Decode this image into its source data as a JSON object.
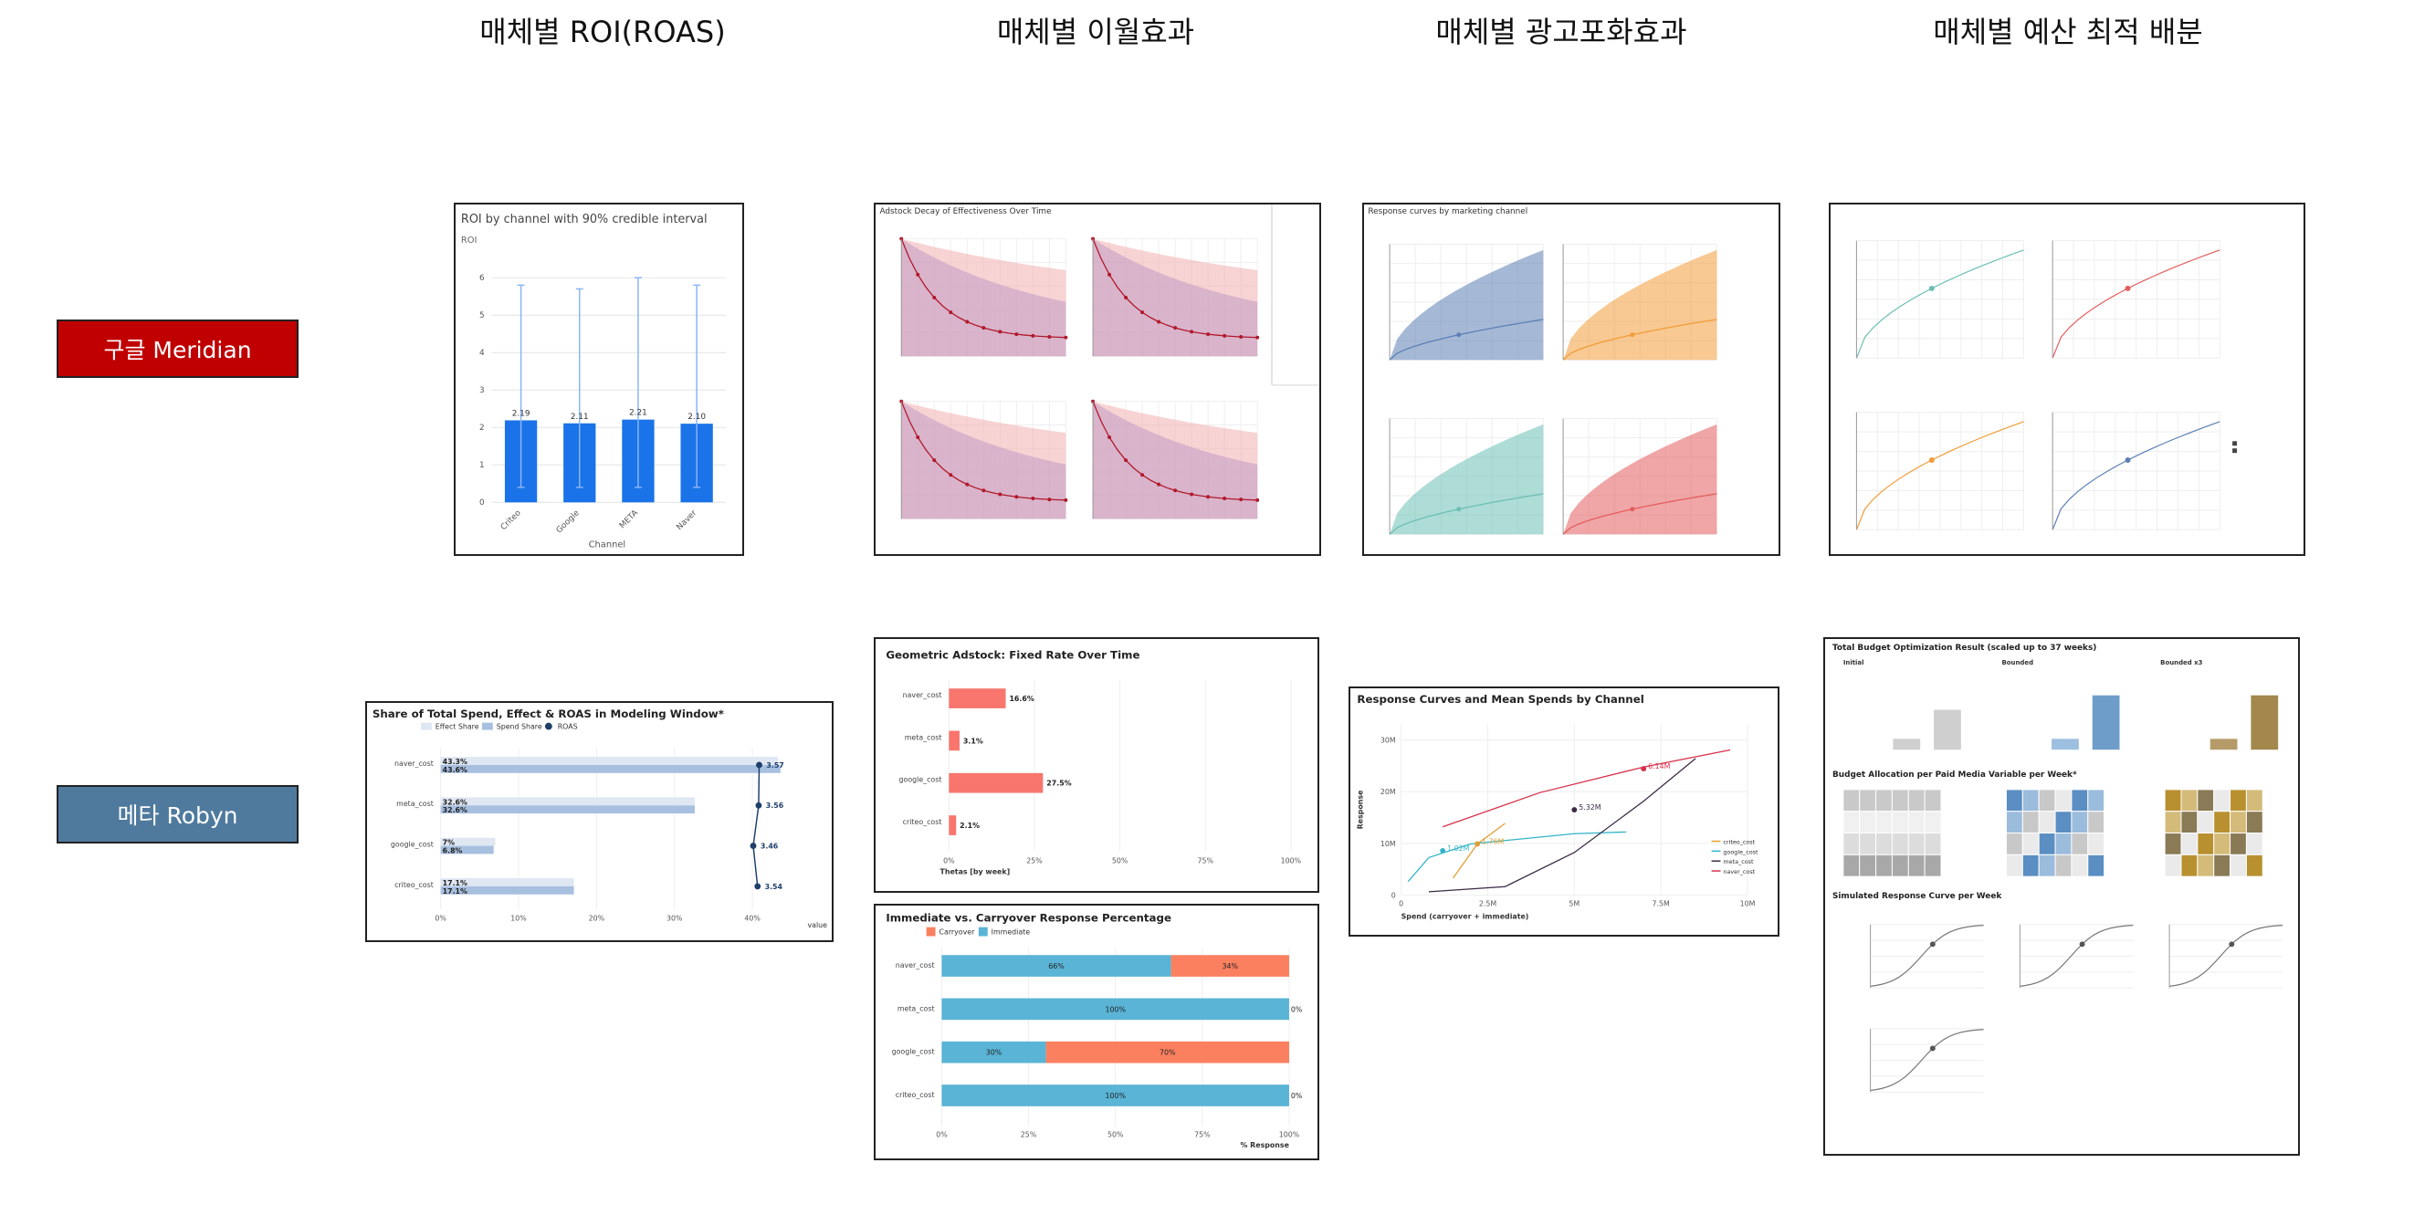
{
  "columns": [
    "매체별 ROI(ROAS)",
    "매체별 이월효과",
    "매체별 광고포화효과",
    "매체별 예산 최적 배분"
  ],
  "rows": [
    {
      "label": "구글 Meridian",
      "color": "#c00000"
    },
    {
      "label": "메타 Robyn",
      "color": "#4f7a9e"
    }
  ],
  "panel_titles": {
    "roi": "ROI by channel with 90% credible interval",
    "adstock": "Adstock Decay of Effectiveness Over Time",
    "response": "Response curves by marketing channel",
    "robyn_share": "Share of Total Spend, Effect & ROAS in Modeling Window*",
    "geom": "Geometric Adstock: Fixed Rate Over Time",
    "imm": "Immediate vs. Carryover Response Percentage",
    "rcurves": "Response Curves and Mean Spends by Channel",
    "budget": "Total Budget Optimization Result (scaled up to 37 weeks)",
    "alloc": "Budget Allocation per Paid Media Variable per Week*",
    "sim": "Simulated Response Curve per Week"
  },
  "chart_data": [
    {
      "id": "meridian_roi",
      "type": "bar",
      "title": "ROI by channel with 90% credible interval",
      "ylabel": "ROI",
      "xlabel": "Channel",
      "categories": [
        "Criteo",
        "Google",
        "META",
        "Naver"
      ],
      "values": [
        2.19,
        2.11,
        2.21,
        2.1
      ],
      "ci_low": [
        0.4,
        0.4,
        0.4,
        0.4
      ],
      "ci_high": [
        5.8,
        5.7,
        6.0,
        5.8
      ],
      "ylim": [
        0,
        6.5
      ],
      "yticks": [
        0,
        1,
        2,
        3,
        4,
        5,
        6
      ],
      "color": "#1a73e8"
    },
    {
      "id": "robyn_share",
      "type": "bar",
      "title": "Share of Total Spend, Effect & ROAS in Modeling Window*",
      "legend": [
        "Effect Share",
        "Spend Share",
        "ROAS"
      ],
      "categories": [
        "naver_cost",
        "meta_cost",
        "google_cost",
        "criteo_cost"
      ],
      "series": [
        {
          "name": "Effect Share",
          "values": [
            43.3,
            32.6,
            7,
            17.1
          ],
          "labels": [
            "43.3%",
            "32.6%",
            "7%",
            "17.1%"
          ]
        },
        {
          "name": "Spend Share",
          "values": [
            43.6,
            32.6,
            6.8,
            17.1
          ],
          "labels": [
            "43.6%",
            "32.6%",
            "6.8%",
            "17.1%"
          ]
        },
        {
          "name": "ROAS",
          "values": [
            3.57,
            3.56,
            3.46,
            3.54
          ],
          "labels": [
            "3.57",
            "3.56",
            "3.46",
            "3.54"
          ]
        }
      ],
      "xticks": [
        "0%",
        "10%",
        "20%",
        "30%",
        "40%"
      ],
      "xlabel": "value"
    },
    {
      "id": "robyn_geom",
      "type": "bar",
      "title": "Geometric Adstock: Fixed Rate Over Time",
      "categories": [
        "naver_cost",
        "meta_cost",
        "google_cost",
        "criteo_cost"
      ],
      "values": [
        16.6,
        3.1,
        27.5,
        2.1
      ],
      "labels": [
        "16.6%",
        "3.1%",
        "27.5%",
        "2.1%"
      ],
      "xlim": [
        0,
        100
      ],
      "xticks": [
        "0%",
        "25%",
        "50%",
        "75%",
        "100%"
      ],
      "xlabel": "Thetas [by week]"
    },
    {
      "id": "robyn_imm",
      "type": "bar",
      "title": "Immediate vs. Carryover Response Percentage",
      "legend": [
        "Carryover",
        "Immediate"
      ],
      "categories": [
        "naver_cost",
        "meta_cost",
        "google_cost",
        "criteo_cost"
      ],
      "series": [
        {
          "name": "Immediate",
          "values": [
            66,
            100,
            30,
            100
          ],
          "labels": [
            "66%",
            "100%",
            "30%",
            "100%"
          ]
        },
        {
          "name": "Carryover",
          "values": [
            34,
            0,
            70,
            0
          ],
          "labels": [
            "34%",
            "0%",
            "70%",
            "0%"
          ]
        }
      ],
      "xticks": [
        "0%",
        "25%",
        "50%",
        "75%",
        "100%"
      ],
      "xlabel": "% Response"
    },
    {
      "id": "robyn_rcurves",
      "type": "line",
      "title": "Response Curves and Mean Spends by Channel",
      "xlabel": "Spend (carryover + immediate)",
      "ylabel": "Response",
      "xticks": [
        "0",
        "2.5M",
        "5M",
        "7.5M",
        "10M"
      ],
      "yticks": [
        "0",
        "10M",
        "20M",
        "30M"
      ],
      "legend": [
        "criteo_cost",
        "google_cost",
        "meta_cost",
        "naver_cost"
      ],
      "annotations": [
        "1.76M",
        "1.02M",
        "5.32M",
        "6.14M"
      ]
    }
  ],
  "meridian_adstock_ticks": [
    "0.0",
    "0.2",
    "0.4",
    "0.6",
    "0.8",
    "1.0"
  ],
  "budget_groups": [
    "Initial",
    "Bounded",
    "Bounded x3"
  ]
}
